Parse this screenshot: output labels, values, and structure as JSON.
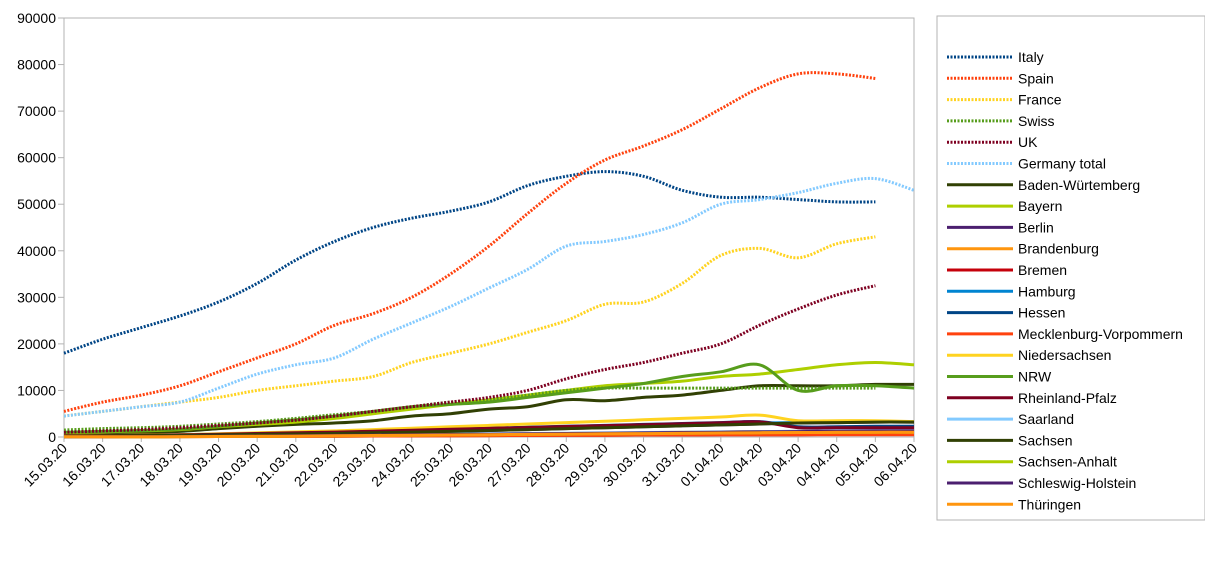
{
  "chart_data": {
    "type": "line",
    "title": "",
    "xlabel": "",
    "ylabel": "",
    "ylim": [
      0,
      90000
    ],
    "yticks": [
      0,
      10000,
      20000,
      30000,
      40000,
      50000,
      60000,
      70000,
      80000,
      90000
    ],
    "grid": false,
    "legend_position": "right",
    "categories": [
      "15.03.20",
      "16.03.20",
      "17.03.20",
      "18.03.20",
      "19.03.20",
      "20.03.20",
      "21.03.20",
      "22.03.20",
      "23.03.20",
      "24.03.20",
      "25.03.20",
      "26.03.20",
      "27.03.20",
      "28.03.20",
      "29.03.20",
      "30.03.20",
      "31.03.20",
      "01.04.20",
      "02.04.20",
      "03.04.20",
      "04.04.20",
      "05.04.20",
      "06.04.20"
    ],
    "series": [
      {
        "name": "Italy",
        "color": "#004586",
        "dashed": true,
        "values": [
          18000,
          21000,
          23500,
          26000,
          29000,
          33000,
          38000,
          42000,
          45000,
          47000,
          48500,
          50500,
          54000,
          56000,
          57000,
          56000,
          53000,
          51500,
          51500,
          51000,
          50500,
          50500,
          null
        ]
      },
      {
        "name": "Spain",
        "color": "#ff420e",
        "dashed": true,
        "values": [
          5500,
          7500,
          9000,
          11000,
          14000,
          17000,
          20000,
          24000,
          26500,
          30000,
          35000,
          41000,
          48000,
          54500,
          59500,
          62500,
          66000,
          70500,
          75000,
          78000,
          78000,
          77000,
          null
        ]
      },
      {
        "name": "France",
        "color": "#ffd320",
        "dashed": true,
        "values": [
          4500,
          5500,
          6500,
          7500,
          8500,
          10000,
          11000,
          12000,
          13000,
          16000,
          18000,
          20000,
          22500,
          25000,
          28500,
          29000,
          33000,
          39000,
          40500,
          38500,
          41500,
          43000,
          null
        ]
      },
      {
        "name": "Swiss",
        "color": "#579d1c",
        "dashed": true,
        "values": [
          1500,
          1800,
          2000,
          2300,
          2800,
          3300,
          4000,
          4800,
          5500,
          6500,
          7500,
          8000,
          9000,
          10000,
          10500,
          10500,
          10500,
          10500,
          10500,
          10500,
          10500,
          10500,
          null
        ]
      },
      {
        "name": "UK",
        "color": "#7e0021",
        "dashed": true,
        "values": [
          1000,
          1300,
          1600,
          2000,
          2500,
          3000,
          3600,
          4500,
          5500,
          6500,
          7500,
          8500,
          10000,
          12500,
          14500,
          16000,
          18000,
          20000,
          24000,
          27500,
          30500,
          32500,
          null
        ]
      },
      {
        "name": "Germany total",
        "color": "#83caff",
        "dashed": true,
        "values": [
          4500,
          5500,
          6500,
          7500,
          10500,
          13500,
          15500,
          17000,
          21000,
          24500,
          28000,
          32000,
          36000,
          41000,
          42000,
          43500,
          46000,
          50000,
          51000,
          52500,
          54500,
          55500,
          53000
        ]
      },
      {
        "name": "Baden-Würtemberg",
        "color": "#314004",
        "dashed": false,
        "values": [
          800,
          900,
          1000,
          1200,
          1800,
          2300,
          2700,
          3000,
          3500,
          4500,
          5000,
          6000,
          6500,
          8000,
          7800,
          8500,
          9000,
          10000,
          11000,
          11000,
          11000,
          11300,
          11300
        ]
      },
      {
        "name": "Bayern",
        "color": "#aecf00",
        "dashed": false,
        "values": [
          900,
          1100,
          1300,
          1600,
          2200,
          2700,
          3200,
          4000,
          5000,
          6000,
          7000,
          8000,
          9000,
          10000,
          11000,
          11500,
          12000,
          13000,
          13500,
          14500,
          15500,
          16000,
          15500
        ]
      },
      {
        "name": "Berlin",
        "color": "#4b1f6f",
        "dashed": false,
        "values": [
          200,
          250,
          300,
          350,
          450,
          550,
          650,
          750,
          900,
          1050,
          1200,
          1400,
          1600,
          1800,
          2000,
          2200,
          2400,
          2600,
          2800,
          3000,
          3100,
          3200,
          3200
        ]
      },
      {
        "name": "Brandenburg",
        "color": "#ff950e",
        "dashed": false,
        "values": [
          60,
          80,
          100,
          130,
          170,
          210,
          260,
          320,
          380,
          450,
          520,
          600,
          680,
          760,
          840,
          920,
          1000,
          1080,
          1150,
          1200,
          1250,
          1300,
          1300
        ]
      },
      {
        "name": "Bremen",
        "color": "#c5000b",
        "dashed": false,
        "values": [
          40,
          50,
          60,
          80,
          100,
          120,
          150,
          180,
          210,
          240,
          270,
          300,
          330,
          360,
          390,
          420,
          450,
          470,
          490,
          500,
          510,
          520,
          520
        ]
      },
      {
        "name": "Hamburg",
        "color": "#0084d1",
        "dashed": false,
        "values": [
          200,
          250,
          300,
          400,
          500,
          600,
          750,
          900,
          1050,
          1200,
          1400,
          1600,
          1800,
          2000,
          2200,
          2400,
          2600,
          2800,
          3000,
          3100,
          3200,
          3300,
          3300
        ]
      },
      {
        "name": "Hessen",
        "color": "#004586",
        "dashed": false,
        "values": [
          300,
          350,
          400,
          500,
          650,
          800,
          950,
          1100,
          1300,
          1500,
          1700,
          1900,
          2100,
          2300,
          2500,
          2700,
          2900,
          3100,
          3300,
          2200,
          2200,
          2300,
          2300
        ]
      },
      {
        "name": "Mecklenburg-Vorpommern",
        "color": "#ff420e",
        "dashed": false,
        "values": [
          40,
          50,
          60,
          80,
          100,
          120,
          150,
          180,
          210,
          240,
          270,
          300,
          330,
          360,
          390,
          420,
          450,
          470,
          490,
          500,
          510,
          520,
          520
        ]
      },
      {
        "name": "Niedersachsen",
        "color": "#ffd320",
        "dashed": false,
        "values": [
          300,
          350,
          400,
          500,
          700,
          900,
          1100,
          1300,
          1600,
          1900,
          2200,
          2500,
          2800,
          3100,
          3400,
          3700,
          4000,
          4300,
          4700,
          3500,
          3500,
          3500,
          3300
        ]
      },
      {
        "name": "NRW",
        "color": "#579d1c",
        "dashed": false,
        "values": [
          1000,
          1200,
          1400,
          1700,
          2300,
          3000,
          3700,
          4500,
          5500,
          6500,
          7000,
          7500,
          8500,
          9500,
          10500,
          11500,
          13000,
          14000,
          15500,
          10000,
          11000,
          11000,
          10500
        ]
      },
      {
        "name": "Rheinland-Pfalz",
        "color": "#7e0021",
        "dashed": false,
        "values": [
          250,
          300,
          350,
          450,
          600,
          750,
          900,
          1050,
          1250,
          1450,
          1650,
          1850,
          2050,
          2250,
          2450,
          2650,
          2850,
          3050,
          3250,
          2000,
          2000,
          2000,
          2000
        ]
      },
      {
        "name": "Saarland",
        "color": "#83caff",
        "dashed": false,
        "values": [
          80,
          100,
          130,
          170,
          220,
          280,
          340,
          400,
          470,
          540,
          610,
          680,
          750,
          820,
          890,
          960,
          1030,
          1100,
          1170,
          1240,
          1300,
          1350,
          1350
        ]
      },
      {
        "name": "Sachsen",
        "color": "#314004",
        "dashed": false,
        "values": [
          200,
          250,
          300,
          350,
          450,
          550,
          650,
          750,
          900,
          1050,
          1200,
          1400,
          1600,
          1800,
          2000,
          2200,
          2400,
          2600,
          2800,
          3000,
          3100,
          3200,
          3200
        ]
      },
      {
        "name": "Sachsen-Anhalt",
        "color": "#aecf00",
        "dashed": false,
        "values": [
          40,
          50,
          60,
          80,
          110,
          150,
          200,
          260,
          320,
          380,
          440,
          500,
          560,
          620,
          680,
          740,
          800,
          860,
          920,
          960,
          1000,
          1040,
          1040
        ]
      },
      {
        "name": "Schleswig-Holstein",
        "color": "#4b1f6f",
        "dashed": false,
        "values": [
          60,
          80,
          100,
          130,
          170,
          220,
          280,
          340,
          400,
          470,
          540,
          610,
          680,
          750,
          820,
          890,
          960,
          1030,
          1100,
          1170,
          1240,
          1300,
          1300
        ]
      },
      {
        "name": "Thüringen",
        "color": "#ff950e",
        "dashed": false,
        "values": [
          40,
          50,
          60,
          80,
          110,
          150,
          200,
          260,
          320,
          380,
          440,
          500,
          560,
          620,
          680,
          740,
          800,
          860,
          920,
          960,
          1000,
          1040,
          1040
        ]
      }
    ]
  }
}
